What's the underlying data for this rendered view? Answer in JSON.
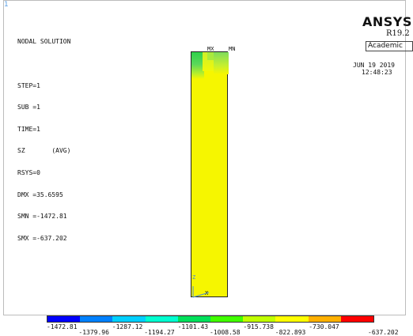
{
  "window": {
    "number": "1"
  },
  "info_lines": [
    "NODAL SOLUTION",
    "",
    "STEP=1",
    "SUB =1",
    "TIME=1",
    "SZ       (AVG)",
    "RSYS=0",
    "DMX =35.6595",
    "SMN =-1472.81",
    "SMX =-637.202"
  ],
  "branding": {
    "product": "ANSYS",
    "release": "R19.2",
    "edition": "Academic",
    "date": "JUN 19 2019",
    "time": "12:48:23"
  },
  "markers": {
    "max": "MX",
    "min": "MN",
    "x_axis": "X",
    "z_axis": "Z"
  },
  "legend": {
    "colors": [
      "#0000ff",
      "#0080ff",
      "#00cfff",
      "#00ffd0",
      "#00e05a",
      "#40ff00",
      "#c0ff00",
      "#ffff00",
      "#ffb000",
      "#ff0000"
    ],
    "labels_upper": [
      "-1472.81",
      "-1287.12",
      "-1101.43",
      "-915.738",
      "-730.047"
    ],
    "labels_lower": [
      "-1379.96",
      "-1194.27",
      "-1008.58",
      "-822.893",
      "-637.202"
    ]
  }
}
